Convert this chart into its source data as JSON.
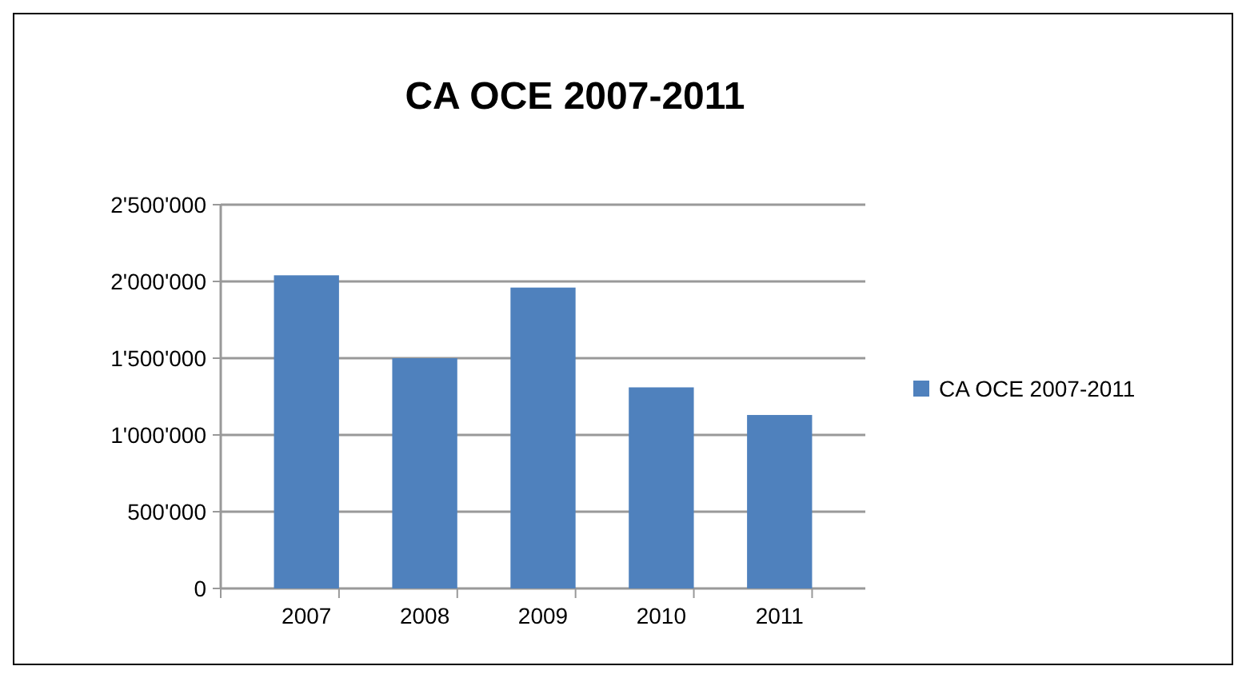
{
  "chart_data": {
    "type": "bar",
    "title": "CA OCE 2007-2011",
    "categories": [
      "2007",
      "2008",
      "2009",
      "2010",
      "2011"
    ],
    "series": [
      {
        "name": "CA OCE 2007-2011",
        "color": "#4f81bd",
        "values": [
          2040000,
          1500000,
          1960000,
          1310000,
          1130000
        ]
      }
    ],
    "ylim": [
      0,
      2500000
    ],
    "yticks": [
      {
        "value": 0,
        "label": "0"
      },
      {
        "value": 500000,
        "label": "500'000"
      },
      {
        "value": 1000000,
        "label": "1'000'000"
      },
      {
        "value": 1500000,
        "label": "1'500'000"
      },
      {
        "value": 2000000,
        "label": "2'000'000"
      },
      {
        "value": 2500000,
        "label": "2'500'000"
      }
    ],
    "grid": "y",
    "legend": "right"
  }
}
